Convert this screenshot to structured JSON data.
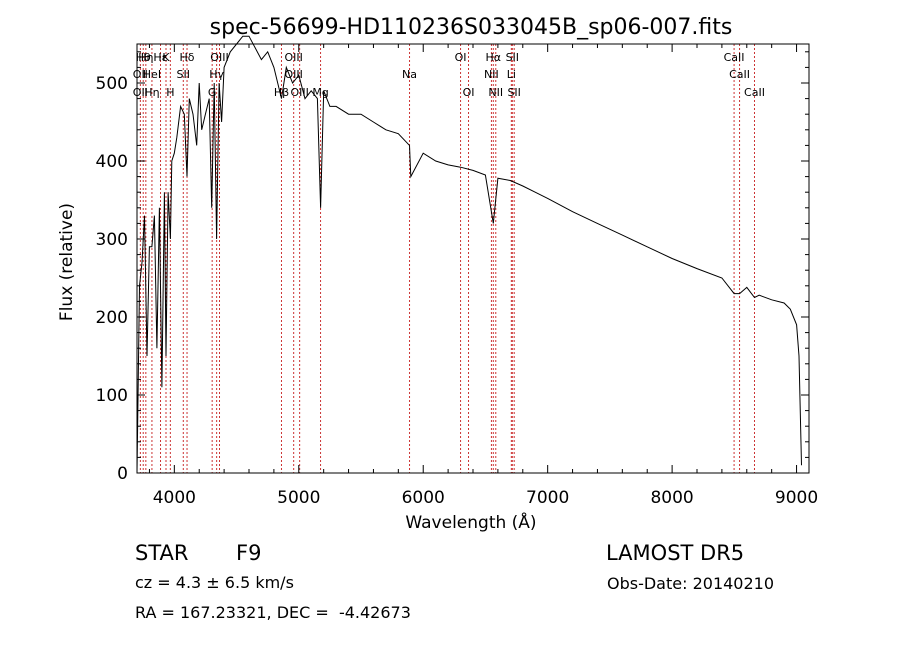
{
  "chart_data": {
    "type": "line",
    "title": "spec-56699-HD110236S033045B_sp06-007.fits",
    "xlabel": "Wavelength (Å)",
    "ylabel": "Flux (relative)",
    "xlim": [
      3700,
      9100
    ],
    "ylim": [
      0,
      550
    ],
    "x_ticks": [
      4000,
      5000,
      6000,
      7000,
      8000,
      9000
    ],
    "y_ticks": [
      0,
      100,
      200,
      300,
      400,
      500
    ],
    "grid": false,
    "line_color": "#000000",
    "marker_color": "#cc3333",
    "series": [
      {
        "x": [
          3700,
          3720,
          3740,
          3760,
          3780,
          3800,
          3820,
          3840,
          3860,
          3880,
          3900,
          3920,
          3933,
          3950,
          3968,
          3980,
          4000,
          4020,
          4050,
          4080,
          4102,
          4120,
          4150,
          4180,
          4200,
          4220,
          4250,
          4280,
          4300,
          4320,
          4340,
          4360,
          4380,
          4400,
          4450,
          4500,
          4550,
          4600,
          4650,
          4700,
          4750,
          4800,
          4861,
          4900,
          4950,
          5000,
          5050,
          5100,
          5150,
          5175,
          5200,
          5250,
          5300,
          5400,
          5500,
          5600,
          5700,
          5800,
          5890,
          5900,
          6000,
          6100,
          6200,
          6300,
          6400,
          6500,
          6563,
          6600,
          6700,
          6800,
          6900,
          7000,
          7200,
          7400,
          7600,
          7800,
          8000,
          8200,
          8400,
          8498,
          8542,
          8600,
          8662,
          8700,
          8800,
          8900,
          8950,
          9000,
          9020,
          9040
        ],
        "y": [
          0,
          240,
          270,
          330,
          150,
          290,
          290,
          330,
          160,
          340,
          110,
          360,
          150,
          360,
          300,
          400,
          410,
          430,
          470,
          460,
          380,
          480,
          460,
          420,
          500,
          440,
          460,
          480,
          340,
          500,
          300,
          500,
          450,
          520,
          540,
          550,
          560,
          560,
          545,
          530,
          540,
          520,
          480,
          520,
          500,
          510,
          480,
          490,
          480,
          340,
          490,
          470,
          470,
          460,
          460,
          450,
          440,
          435,
          420,
          380,
          410,
          400,
          395,
          392,
          388,
          382,
          320,
          378,
          375,
          368,
          360,
          352,
          335,
          320,
          305,
          290,
          275,
          262,
          250,
          230,
          230,
          238,
          225,
          228,
          222,
          218,
          210,
          190,
          150,
          10
        ]
      }
    ],
    "line_labels": [
      {
        "wl": 3750,
        "row": 1,
        "text": "Hθ"
      },
      {
        "wl": 3771,
        "row": 1,
        "text": "Hη"
      },
      {
        "wl": 3889,
        "row": 1,
        "text": "Hε"
      },
      {
        "wl": 3933,
        "row": 1,
        "text": "K"
      },
      {
        "wl": 4102,
        "row": 1,
        "text": "Hδ"
      },
      {
        "wl": 4363,
        "row": 1,
        "text": "OIII"
      },
      {
        "wl": 4959,
        "row": 1,
        "text": "OIII"
      },
      {
        "wl": 6300,
        "row": 1,
        "text": "OI"
      },
      {
        "wl": 6563,
        "row": 1,
        "text": "Hα"
      },
      {
        "wl": 6716,
        "row": 1,
        "text": "SII"
      },
      {
        "wl": 8498,
        "row": 1,
        "text": "CaII"
      },
      {
        "wl": 3727,
        "row": 2,
        "text": "OII"
      },
      {
        "wl": 3820,
        "row": 2,
        "text": "HeI"
      },
      {
        "wl": 4072,
        "row": 2,
        "text": "SII"
      },
      {
        "wl": 4340,
        "row": 2,
        "text": "Hγ"
      },
      {
        "wl": 4959,
        "row": 2,
        "text": "OIII"
      },
      {
        "wl": 5890,
        "row": 2,
        "text": "Na"
      },
      {
        "wl": 6548,
        "row": 2,
        "text": "NII"
      },
      {
        "wl": 6708,
        "row": 2,
        "text": "Li"
      },
      {
        "wl": 8542,
        "row": 2,
        "text": "CaII"
      },
      {
        "wl": 3727,
        "row": 3,
        "text": "OII"
      },
      {
        "wl": 3820,
        "row": 3,
        "text": "Hη"
      },
      {
        "wl": 3968,
        "row": 3,
        "text": "H"
      },
      {
        "wl": 4304,
        "row": 3,
        "text": "G"
      },
      {
        "wl": 4861,
        "row": 3,
        "text": "Hβ"
      },
      {
        "wl": 5007,
        "row": 3,
        "text": "OIII"
      },
      {
        "wl": 5175,
        "row": 3,
        "text": "Mg"
      },
      {
        "wl": 6364,
        "row": 3,
        "text": "OI"
      },
      {
        "wl": 6583,
        "row": 3,
        "text": "NII"
      },
      {
        "wl": 6731,
        "row": 3,
        "text": "SII"
      },
      {
        "wl": 8662,
        "row": 3,
        "text": "CaII"
      }
    ],
    "marker_lines": [
      3727,
      3750,
      3771,
      3820,
      3889,
      3933,
      3968,
      4072,
      4102,
      4304,
      4340,
      4363,
      4861,
      4959,
      5007,
      5175,
      5890,
      6300,
      6364,
      6548,
      6563,
      6583,
      6708,
      6716,
      6731,
      8498,
      8542,
      8662
    ]
  },
  "info": {
    "class": "STAR",
    "subclass": "F9",
    "survey": "LAMOST DR5",
    "cz": "cz = 4.3 ± 6.5 km/s",
    "obs_date": "Obs-Date: 20140210",
    "radec": "RA = 167.23321, DEC =  -4.42673"
  }
}
